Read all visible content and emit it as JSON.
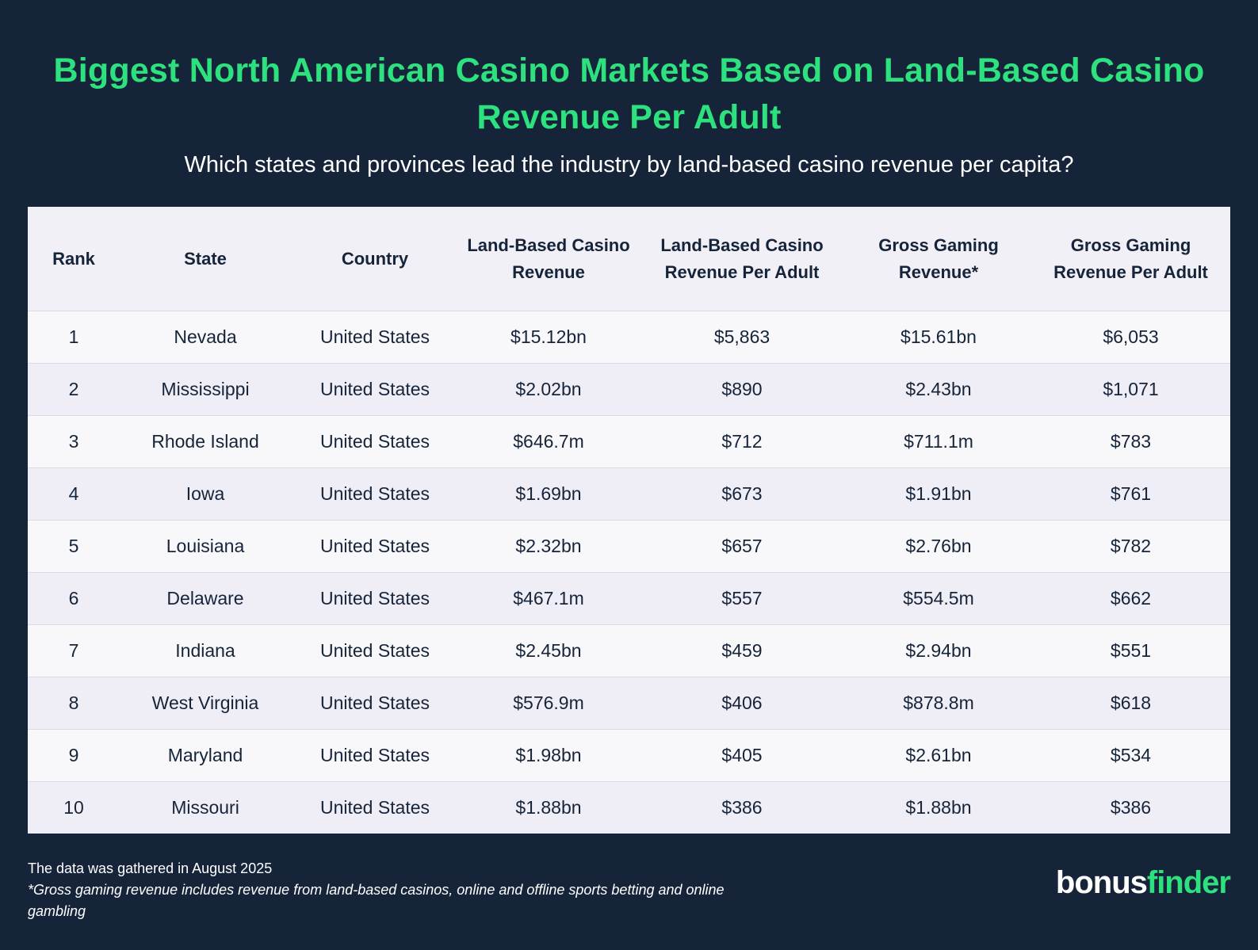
{
  "title": "Biggest North American Casino Markets Based on Land-Based Casino Revenue Per Adult",
  "subtitle": "Which states and provinces lead the industry by land-based casino revenue per capita?",
  "colors": {
    "background": "#16243a",
    "accent": "#2ee17f",
    "header_bg": "#f2f0f7",
    "row_odd": "#f8f8fa",
    "row_even": "#efedf6"
  },
  "chart_data": {
    "type": "table",
    "columns": [
      "Rank",
      "State",
      "Country",
      "Land-Based Casino Revenue",
      "Land-Based Casino Revenue Per Adult",
      "Gross Gaming Revenue*",
      "Gross Gaming Revenue Per Adult"
    ],
    "rows": [
      [
        "1",
        "Nevada",
        "United States",
        "$15.12bn",
        "$5,863",
        "$15.61bn",
        "$6,053"
      ],
      [
        "2",
        "Mississippi",
        "United States",
        "$2.02bn",
        "$890",
        "$2.43bn",
        "$1,071"
      ],
      [
        "3",
        "Rhode Island",
        "United States",
        "$646.7m",
        "$712",
        "$711.1m",
        "$783"
      ],
      [
        "4",
        "Iowa",
        "United States",
        "$1.69bn",
        "$673",
        "$1.91bn",
        "$761"
      ],
      [
        "5",
        "Louisiana",
        "United States",
        "$2.32bn",
        "$657",
        "$2.76bn",
        "$782"
      ],
      [
        "6",
        "Delaware",
        "United States",
        "$467.1m",
        "$557",
        "$554.5m",
        "$662"
      ],
      [
        "7",
        "Indiana",
        "United States",
        "$2.45bn",
        "$459",
        "$2.94bn",
        "$551"
      ],
      [
        "8",
        "West Virginia",
        "United States",
        "$576.9m",
        "$406",
        "$878.8m",
        "$618"
      ],
      [
        "9",
        "Maryland",
        "United States",
        "$1.98bn",
        "$405",
        "$2.61bn",
        "$534"
      ],
      [
        "10",
        "Missouri",
        "United States",
        "$1.88bn",
        "$386",
        "$1.88bn",
        "$386"
      ]
    ]
  },
  "footnote": {
    "source": "The data was gathered in August 2025",
    "note": "*Gross gaming revenue includes revenue from land-based casinos, online and offline sports betting and online gambling"
  },
  "logo": {
    "part1": "bonus",
    "part2": "finder"
  }
}
